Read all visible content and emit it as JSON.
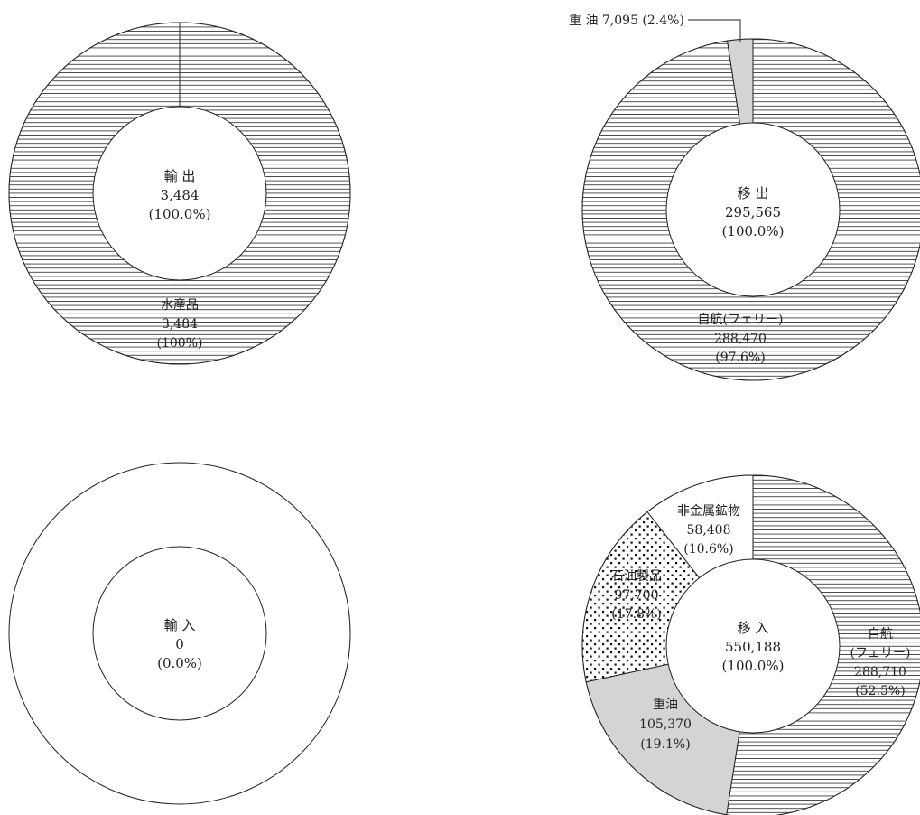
{
  "colors": {
    "stroke": "#222222",
    "background": "#ffffff",
    "gray": "#d4d4d4",
    "hatch": "#444444",
    "dots": "#111111"
  },
  "chart_data": [
    {
      "type": "pie",
      "center_label": {
        "line1": "輸 出",
        "line2": "3,484",
        "line3": "(100.0%)"
      },
      "slices": [
        {
          "name": "水産品",
          "value": 3484,
          "pct_label": "(100%)",
          "fill": "hatch",
          "label_lines": [
            "水産品",
            "3,484",
            "(100%)"
          ]
        }
      ]
    },
    {
      "type": "pie",
      "center_label": {
        "line1": "移 出",
        "line2": "295,565",
        "line3": "(100.0%)"
      },
      "slices": [
        {
          "name": "自航(フェリー)",
          "value": 288470,
          "fill": "hatch",
          "label_lines": [
            "自航(フェリー)",
            "288,470",
            "(97.6%)"
          ]
        },
        {
          "name": "重 油",
          "value": 7095,
          "fill": "gray",
          "label_lines": [
            "重 油 7,095 (2.4%)"
          ]
        }
      ]
    },
    {
      "type": "pie",
      "center_label": {
        "line1": "輸 入",
        "line2": "0",
        "line3": "(0.0%)"
      },
      "slices": []
    },
    {
      "type": "pie",
      "center_label": {
        "line1": "移 入",
        "line2": "550,188",
        "line3": "(100.0%)"
      },
      "slices": [
        {
          "name": "自航(フェリー)",
          "value": 288710,
          "fill": "hatch",
          "label_lines": [
            "自航",
            "(フェリー)",
            "288,710",
            "(52.5%)"
          ]
        },
        {
          "name": "重油",
          "value": 105370,
          "fill": "gray",
          "label_lines": [
            "重油",
            "105,370",
            "(19.1%)"
          ]
        },
        {
          "name": "石油製品",
          "value": 97700,
          "fill": "dots",
          "label_lines": [
            "石油製品",
            "97,700",
            "(17.8%)"
          ]
        },
        {
          "name": "非金属鉱物",
          "value": 58408,
          "fill": "white",
          "label_lines": [
            "非金属鉱物",
            "58,408",
            "(10.6%)"
          ]
        }
      ]
    }
  ]
}
